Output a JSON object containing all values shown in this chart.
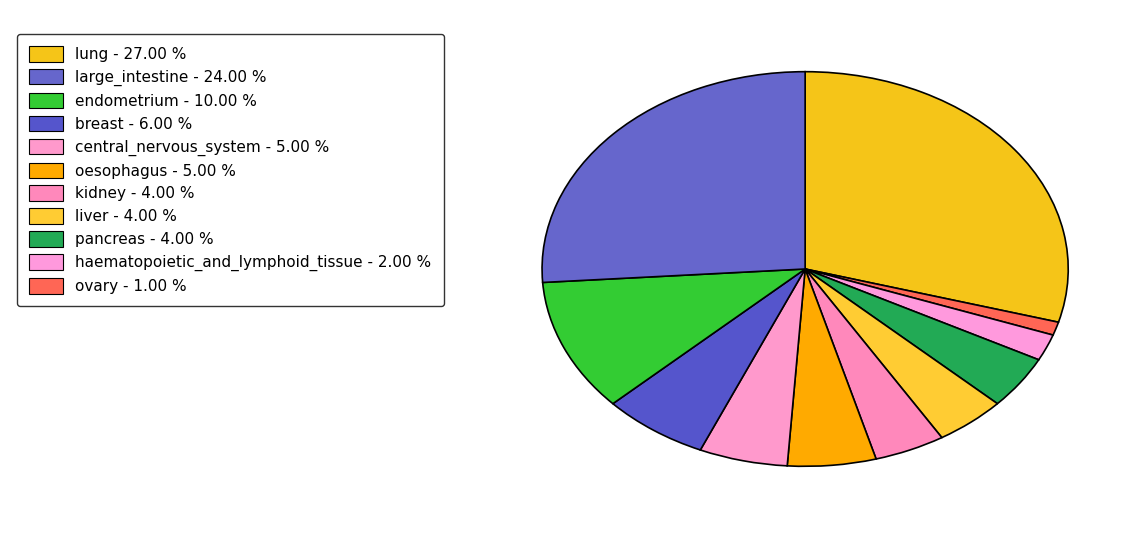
{
  "labels": [
    "lung",
    "large_intestine",
    "endometrium",
    "breast",
    "central_nervous_system",
    "oesophagus",
    "kidney",
    "liver",
    "pancreas",
    "haematopoietic_and_lymphoid_tissue",
    "ovary"
  ],
  "values": [
    27,
    24,
    10,
    6,
    5,
    5,
    4,
    4,
    4,
    2,
    1
  ],
  "colors": [
    "#F5C518",
    "#6666CC",
    "#33CC33",
    "#5555CC",
    "#FF99CC",
    "#FFAA00",
    "#FF88BB",
    "#FFCC33",
    "#22AA55",
    "#FF99DD",
    "#FF6655"
  ],
  "legend_labels": [
    "lung - 27.00 %",
    "large_intestine - 24.00 %",
    "endometrium - 10.00 %",
    "breast - 6.00 %",
    "central_nervous_system - 5.00 %",
    "oesophagus - 5.00 %",
    "kidney - 4.00 %",
    "liver - 4.00 %",
    "pancreas - 4.00 %",
    "haematopoietic_and_lymphoid_tissue - 2.00 %",
    "ovary - 1.00 %"
  ],
  "pie_order": [
    0,
    10,
    9,
    8,
    7,
    6,
    5,
    4,
    3,
    2,
    1
  ],
  "startangle": 90,
  "figure_width": 11.34,
  "figure_height": 5.38
}
